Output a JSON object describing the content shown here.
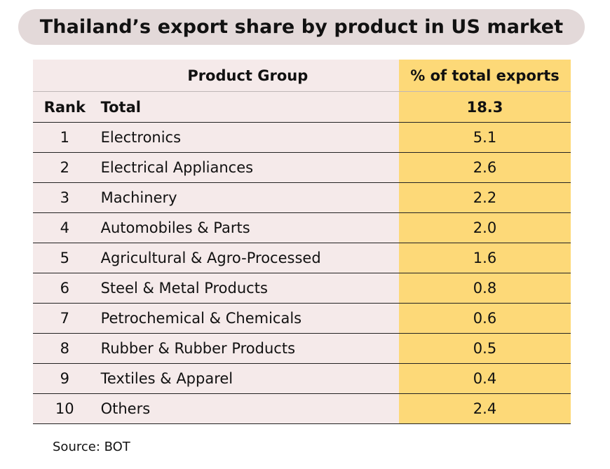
{
  "title": "Thailand’s export share by product in US market",
  "table": {
    "headers": {
      "rank": "",
      "product": "Product Group",
      "value": "% of total exports"
    },
    "total": {
      "rank": "Rank",
      "product": "Total",
      "value": "18.3"
    },
    "rows": [
      {
        "rank": "1",
        "product": "Electronics",
        "value": "5.1"
      },
      {
        "rank": "2",
        "product": "Electrical Appliances",
        "value": "2.6"
      },
      {
        "rank": "3",
        "product": "Machinery",
        "value": "2.2"
      },
      {
        "rank": "4",
        "product": "Automobiles & Parts",
        "value": "2.0"
      },
      {
        "rank": "5",
        "product": "Agricultural & Agro-Processed",
        "value": "1.6"
      },
      {
        "rank": "6",
        "product": "Steel & Metal Products",
        "value": "0.8"
      },
      {
        "rank": "7",
        "product": "Petrochemical & Chemicals",
        "value": "0.6"
      },
      {
        "rank": "8",
        "product": "Rubber & Rubber Products",
        "value": "0.5"
      },
      {
        "rank": "9",
        "product": "Textiles & Apparel",
        "value": "0.4"
      },
      {
        "rank": "10",
        "product": "Others",
        "value": "2.4"
      }
    ]
  },
  "source": "Source: BOT",
  "colors": {
    "title_bg": "#e3d9d9",
    "left_bg": "#f5eaea",
    "right_bg": "#fdd978"
  },
  "chart_data": {
    "type": "table",
    "title": "Thailand’s export share by product in US market",
    "columns": [
      "Rank",
      "Product Group",
      "% of total exports"
    ],
    "total": 18.3,
    "categories": [
      "Electronics",
      "Electrical Appliances",
      "Machinery",
      "Automobiles & Parts",
      "Agricultural & Agro-Processed",
      "Steel & Metal Products",
      "Petrochemical & Chemicals",
      "Rubber & Rubber Products",
      "Textiles & Apparel",
      "Others"
    ],
    "values": [
      5.1,
      2.6,
      2.2,
      2.0,
      1.6,
      0.8,
      0.6,
      0.5,
      0.4,
      2.4
    ]
  }
}
